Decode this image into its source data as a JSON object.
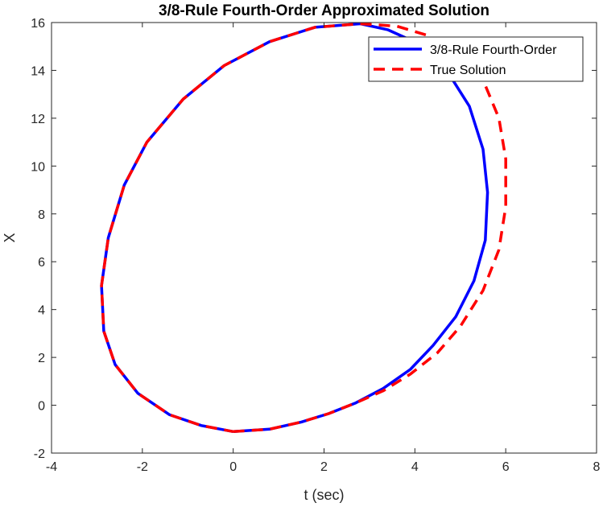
{
  "chart_data": {
    "type": "line",
    "title": "3/8-Rule Fourth-Order Approximated Solution",
    "xlabel": "t (sec)",
    "ylabel": "X",
    "xlim": [
      -4,
      8
    ],
    "ylim": [
      -2,
      16
    ],
    "xticks": [
      "-4",
      "-2",
      "0",
      "2",
      "4",
      "6",
      "8"
    ],
    "yticks": [
      "-2",
      "0",
      "2",
      "4",
      "6",
      "8",
      "10",
      "12",
      "14",
      "16"
    ],
    "grid": false,
    "legend_position": "top-right",
    "series": [
      {
        "name": "3/8-Rule Fourth-Order",
        "color": "#0000ff",
        "style": "solid",
        "x": [
          0.0,
          0.8,
          1.5,
          2.1,
          2.7,
          3.3,
          3.9,
          4.4,
          4.9,
          5.3,
          5.55,
          5.6,
          5.5,
          5.2,
          4.7,
          4.1,
          3.4,
          2.8,
          1.8,
          0.8,
          -0.2,
          -1.1,
          -1.9,
          -2.4,
          -2.75,
          -2.9,
          -2.85,
          -2.6,
          -2.1,
          -1.4,
          -0.7,
          0.0
        ],
        "y": [
          -1.1,
          -1.0,
          -0.7,
          -0.35,
          0.1,
          0.7,
          1.5,
          2.5,
          3.7,
          5.2,
          6.9,
          8.9,
          10.7,
          12.5,
          14.0,
          15.1,
          15.7,
          15.95,
          15.8,
          15.2,
          14.2,
          12.8,
          11.0,
          9.2,
          7.0,
          5.0,
          3.1,
          1.7,
          0.5,
          -0.4,
          -0.85,
          -1.1
        ]
      },
      {
        "name": "True Solution",
        "color": "#ff0000",
        "style": "dashed",
        "x": [
          0.0,
          0.8,
          1.5,
          2.1,
          2.7,
          3.3,
          3.9,
          4.5,
          5.0,
          5.5,
          5.85,
          6.0,
          6.0,
          5.85,
          5.5,
          5.0,
          4.3,
          3.6,
          2.8,
          1.8,
          0.8,
          -0.2,
          -1.1,
          -1.9,
          -2.4,
          -2.75,
          -2.9,
          -2.85,
          -2.6,
          -2.1,
          -1.4,
          -0.7,
          0.0
        ],
        "y": [
          -1.1,
          -1.0,
          -0.7,
          -0.35,
          0.1,
          0.6,
          1.3,
          2.2,
          3.3,
          4.8,
          6.5,
          8.3,
          10.3,
          12.0,
          13.6,
          14.7,
          15.45,
          15.85,
          15.95,
          15.8,
          15.2,
          14.2,
          12.8,
          11.0,
          9.2,
          7.0,
          5.0,
          3.1,
          1.7,
          0.5,
          -0.4,
          -0.85,
          -1.1
        ]
      }
    ]
  }
}
